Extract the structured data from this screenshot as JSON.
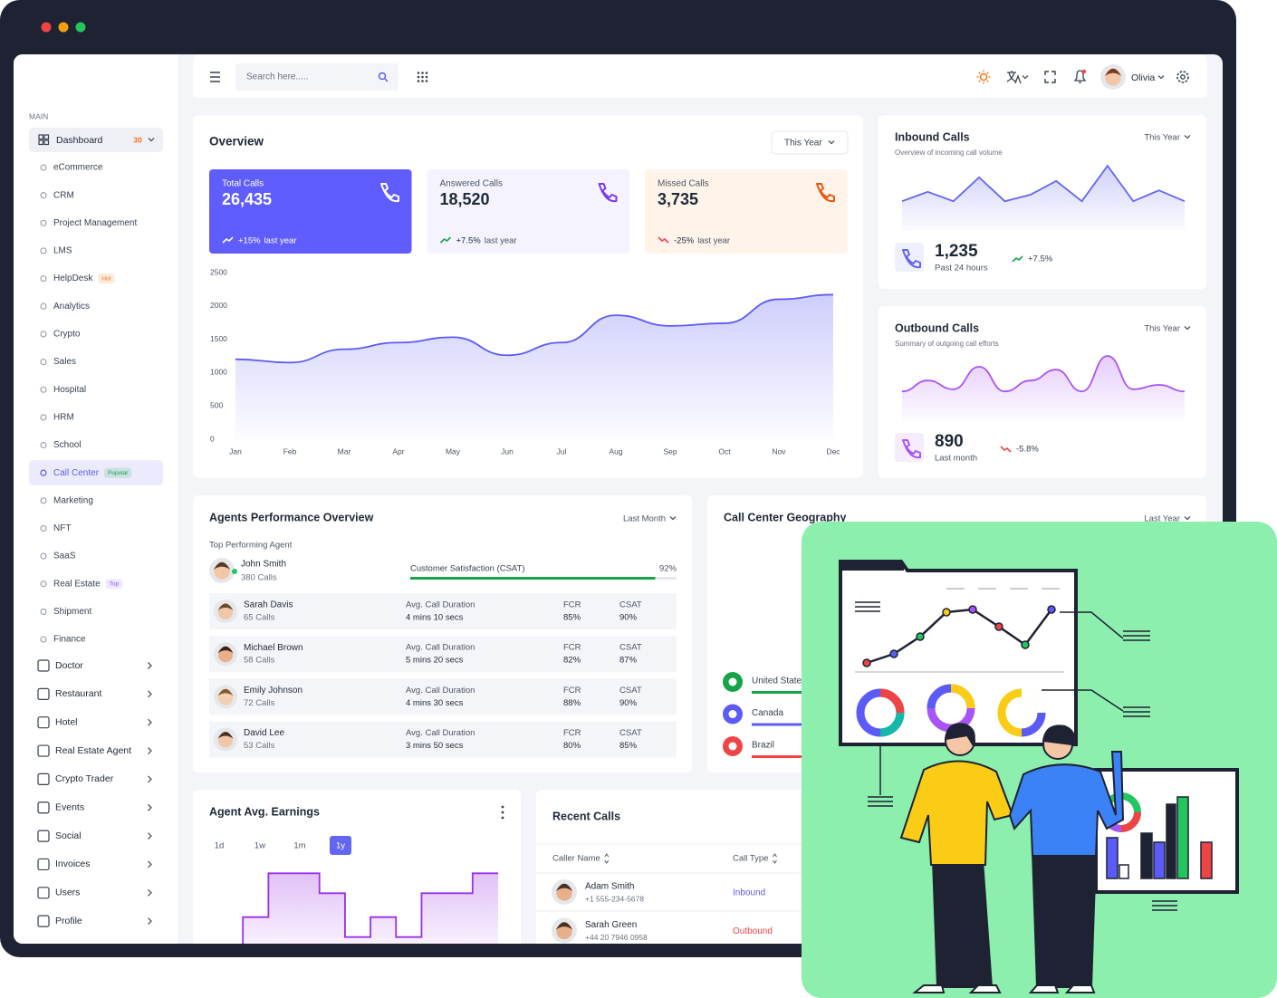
{
  "sidebar": {
    "section": "MAIN",
    "dashboard": {
      "label": "Dashboard",
      "badge": "30",
      "badge_color": "#f97316"
    },
    "dashboard_links": [
      {
        "label": "eCommerce"
      },
      {
        "label": "CRM"
      },
      {
        "label": "Project Management"
      },
      {
        "label": "LMS"
      },
      {
        "label": "HelpDesk",
        "badge": "Hot",
        "badge_color": "#f97316"
      },
      {
        "label": "Analytics"
      },
      {
        "label": "Crypto"
      },
      {
        "label": "Sales"
      },
      {
        "label": "Hospital"
      },
      {
        "label": "HRM"
      },
      {
        "label": "School"
      },
      {
        "label": "Call Center",
        "badge": "Popular",
        "badge_color": "#16a34a",
        "active": true
      },
      {
        "label": "Marketing"
      },
      {
        "label": "NFT"
      },
      {
        "label": "SaaS"
      },
      {
        "label": "Real Estate",
        "badge": "Top",
        "badge_color": "#8b5cf6"
      },
      {
        "label": "Shipment"
      },
      {
        "label": "Finance"
      }
    ],
    "menu": [
      "Doctor",
      "Restaurant",
      "Hotel",
      "Real Estate Agent",
      "Crypto Trader",
      "Events",
      "Social",
      "Invoices",
      "Users",
      "Profile"
    ]
  },
  "header": {
    "search_placeholder": "Search here.....",
    "user": "Olivia"
  },
  "overview": {
    "title": "Overview",
    "filter": "This Year",
    "stats": [
      {
        "label": "Total Calls",
        "value": "26,435",
        "change": "+15%",
        "period": "last year"
      },
      {
        "label": "Answered Calls",
        "value": "18,520",
        "change": "+7.5%",
        "period": "last year"
      },
      {
        "label": "Missed Calls",
        "value": "3,735",
        "change": "-25%",
        "period": "last year"
      }
    ],
    "chart": {
      "type": "line",
      "categories": [
        "Jan",
        "Feb",
        "Mar",
        "Apr",
        "May",
        "Jun",
        "Jul",
        "Aug",
        "Sep",
        "Oct",
        "Nov",
        "Dec"
      ],
      "values": [
        1200,
        1150,
        1350,
        1450,
        1530,
        1260,
        1450,
        1860,
        1700,
        1740,
        2100,
        2170
      ],
      "ylim": [
        0,
        2500
      ],
      "yticks": [
        0,
        500,
        1000,
        1500,
        2000,
        2500
      ],
      "color": "#5b5bf7"
    }
  },
  "inbound": {
    "title": "Inbound Calls",
    "subtitle": "Overview of incoming call volume",
    "filter": "This Year",
    "value": "1,235",
    "period": "Past 24 hours",
    "change": "+7.5%",
    "chart": {
      "type": "area",
      "values": [
        41,
        54,
        41,
        74,
        41,
        50,
        69,
        41,
        90,
        41,
        56,
        41
      ],
      "ylim": [
        0,
        100
      ],
      "color": "#6366f1"
    }
  },
  "outbound": {
    "title": "Outbound Calls",
    "subtitle": "Summary of outgoing call efforts",
    "filter": "This Year",
    "value": "890",
    "period": "Last month",
    "change": "-5.8%",
    "chart": {
      "type": "line",
      "values": [
        41,
        56,
        44,
        75,
        41,
        56,
        71,
        41,
        90,
        44,
        50,
        41
      ],
      "ylim": [
        0,
        100
      ],
      "color": "#a855f7"
    }
  },
  "agents": {
    "title": "Agents Performance Overview",
    "filter": "Last Month",
    "top_label": "Top Performing Agent",
    "top": {
      "name": "John Smith",
      "calls": "380 Calls",
      "metric": "Customer Satisfaction (CSAT)",
      "csat": {
        "value": 92,
        "label": "92%"
      }
    },
    "columns": [
      "Avg. Call Duration",
      "FCR",
      "CSAT"
    ],
    "rows": [
      {
        "name": "Sarah Davis",
        "calls": "65 Calls",
        "duration": "4 mins 10 secs",
        "fcr": "85%",
        "csat": "90%"
      },
      {
        "name": "Michael Brown",
        "calls": "58 Calls",
        "duration": "5 mins 20 secs",
        "fcr": "82%",
        "csat": "87%"
      },
      {
        "name": "Emily Johnson",
        "calls": "72 Calls",
        "duration": "4 mins 30 secs",
        "fcr": "88%",
        "csat": "90%"
      },
      {
        "name": "David Lee",
        "calls": "53 Calls",
        "duration": "3 mins 50 secs",
        "fcr": "80%",
        "csat": "85%"
      }
    ]
  },
  "geography": {
    "title": "Call Center Geography",
    "filter": "Last Year",
    "countries": [
      {
        "name": "United States",
        "color": "#16a34a"
      },
      {
        "name": "Canada",
        "color": "#5b5bf7"
      },
      {
        "name": "Brazil",
        "color": "#ef4444"
      }
    ]
  },
  "earnings": {
    "title": "Agent Avg. Earnings",
    "ranges": [
      "1d",
      "1w",
      "1m",
      "1y"
    ],
    "active_range": 3,
    "chart": {
      "type": "step",
      "values": [
        14,
        43,
        87,
        87,
        67,
        23,
        43,
        23,
        67,
        67,
        87
      ],
      "ylim": [
        0,
        100
      ],
      "color": "#9b30e8"
    }
  },
  "recent_calls": {
    "title": "Recent Calls",
    "columns": [
      "Caller Name",
      "Call Type"
    ],
    "rows": [
      {
        "name": "Adam Smith",
        "phone": "+1 555-234-5678",
        "type": "Inbound",
        "color": "#5b5bf7"
      },
      {
        "name": "Sarah Green",
        "phone": "+44 20 7946 0958",
        "type": "Outbound",
        "color": "#ef4444"
      }
    ]
  }
}
